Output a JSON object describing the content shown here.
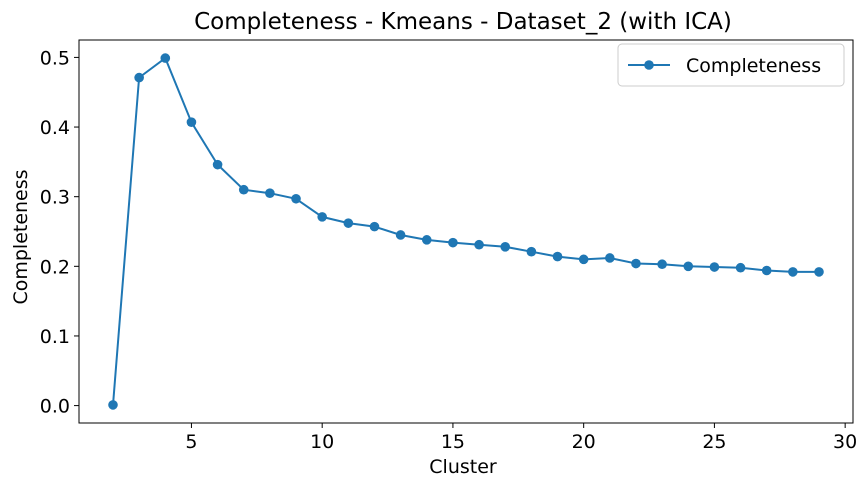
{
  "chart_data": {
    "type": "line",
    "title": "Completeness - Kmeans - Dataset_2 (with ICA)",
    "xlabel": "Cluster",
    "ylabel": "Completeness",
    "xlim": [
      0.7,
      30.3
    ],
    "ylim": [
      -0.025,
      0.525
    ],
    "xticks": [
      5,
      10,
      15,
      20,
      25,
      30
    ],
    "yticks": [
      0.0,
      0.1,
      0.2,
      0.3,
      0.4,
      0.5
    ],
    "xtick_labels": [
      "5",
      "10",
      "15",
      "20",
      "25",
      "30"
    ],
    "ytick_labels": [
      "0.0",
      "0.1",
      "0.2",
      "0.3",
      "0.4",
      "0.5"
    ],
    "grid": false,
    "legend_position": "top-right",
    "series": [
      {
        "name": "Completeness",
        "color": "#1f77b4",
        "marker": "circle",
        "x": [
          2,
          3,
          4,
          5,
          6,
          7,
          8,
          9,
          10,
          11,
          12,
          13,
          14,
          15,
          16,
          17,
          18,
          19,
          20,
          21,
          22,
          23,
          24,
          25,
          26,
          27,
          28,
          29
        ],
        "y": [
          0.001,
          0.471,
          0.499,
          0.407,
          0.346,
          0.31,
          0.305,
          0.297,
          0.271,
          0.262,
          0.257,
          0.245,
          0.238,
          0.234,
          0.231,
          0.228,
          0.221,
          0.214,
          0.21,
          0.212,
          0.204,
          0.203,
          0.2,
          0.199,
          0.198,
          0.194,
          0.192,
          0.192
        ]
      }
    ]
  }
}
